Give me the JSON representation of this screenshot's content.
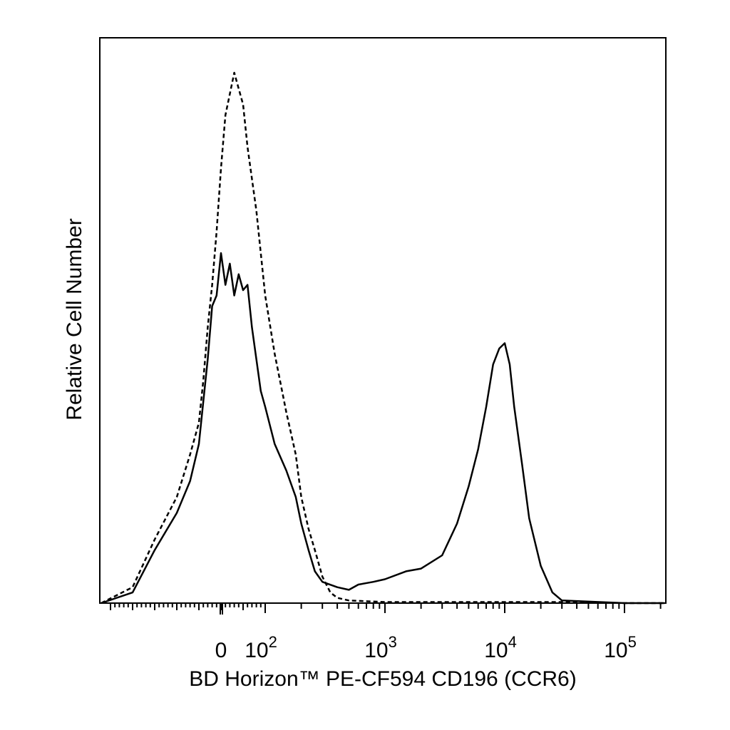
{
  "chart_data": {
    "type": "line",
    "title": "",
    "xlabel": "BD Horizon™ PE-CF594 CD196 (CCR6)",
    "ylabel": "Relative Cell Number",
    "x_scale": "biexponential",
    "x_tick_labels": [
      {
        "label": "0",
        "value": 0
      },
      {
        "label": "10",
        "exp": "2",
        "value": 100
      },
      {
        "label": "10",
        "exp": "3",
        "value": 1000
      },
      {
        "label": "10",
        "exp": "4",
        "value": 10000
      },
      {
        "label": "10",
        "exp": "5",
        "value": 100000
      }
    ],
    "y_ticks_shown": false,
    "grid": false,
    "legend": "none",
    "series": [
      {
        "style": "dashed",
        "color": "#000000",
        "x": [
          -300,
          -200,
          -150,
          -100,
          -70,
          -50,
          -40,
          -30,
          -20,
          -10,
          0,
          10,
          20,
          30,
          40,
          50,
          60,
          70,
          80,
          90,
          100,
          120,
          150,
          180,
          200,
          230,
          260,
          300,
          350,
          400,
          500,
          800,
          1000,
          3000,
          10000,
          30000,
          100000,
          300000
        ],
        "y": [
          0,
          0.03,
          0.12,
          0.2,
          0.28,
          0.34,
          0.42,
          0.52,
          0.6,
          0.7,
          0.82,
          0.92,
          0.96,
          1.0,
          0.97,
          0.94,
          0.86,
          0.8,
          0.74,
          0.66,
          0.58,
          0.47,
          0.36,
          0.28,
          0.2,
          0.14,
          0.1,
          0.05,
          0.02,
          0.01,
          0.005,
          0.003,
          0.002,
          0.002,
          0.002,
          0.002,
          0,
          0
        ]
      },
      {
        "style": "solid",
        "color": "#000000",
        "x": [
          -300,
          -200,
          -150,
          -100,
          -70,
          -50,
          -40,
          -30,
          -20,
          -10,
          0,
          10,
          20,
          30,
          40,
          50,
          60,
          70,
          80,
          90,
          100,
          120,
          150,
          180,
          200,
          230,
          260,
          300,
          400,
          500,
          600,
          800,
          1000,
          1500,
          2000,
          3000,
          4000,
          5000,
          6000,
          7000,
          8000,
          9000,
          10000,
          11000,
          12000,
          14000,
          16000,
          20000,
          25000,
          30000,
          100000,
          300000
        ],
        "y": [
          0,
          0.02,
          0.1,
          0.17,
          0.23,
          0.3,
          0.38,
          0.46,
          0.56,
          0.58,
          0.66,
          0.6,
          0.64,
          0.58,
          0.62,
          0.59,
          0.6,
          0.52,
          0.46,
          0.4,
          0.37,
          0.3,
          0.25,
          0.2,
          0.15,
          0.1,
          0.06,
          0.04,
          0.03,
          0.025,
          0.035,
          0.04,
          0.045,
          0.06,
          0.065,
          0.09,
          0.15,
          0.22,
          0.29,
          0.37,
          0.45,
          0.48,
          0.49,
          0.45,
          0.37,
          0.26,
          0.16,
          0.07,
          0.02,
          0.005,
          0,
          0
        ]
      }
    ]
  }
}
